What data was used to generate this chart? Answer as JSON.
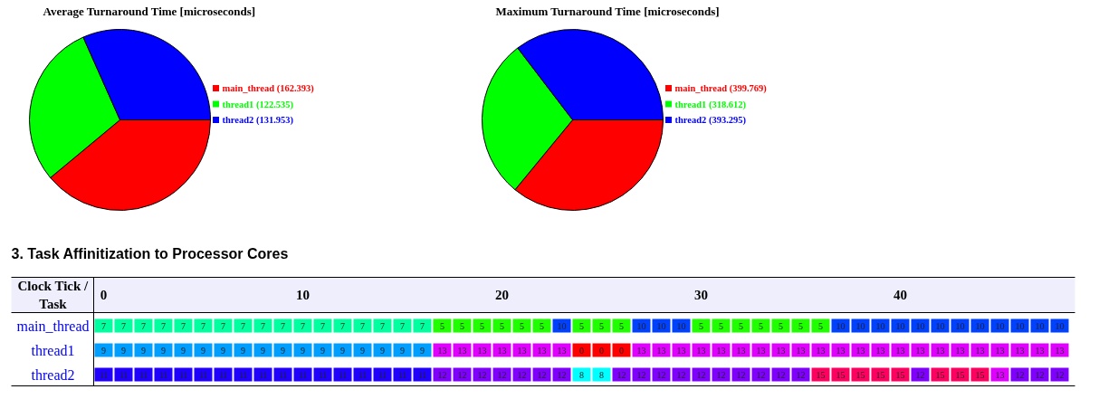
{
  "chart_data": [
    {
      "type": "pie",
      "title": "Average Turnaround Time [microseconds]",
      "categories": [
        "main_thread",
        "thread1",
        "thread2"
      ],
      "values": [
        162.393,
        122.535,
        131.953
      ],
      "value_labels": [
        "(162.393)",
        "(122.535)",
        "(131.953)"
      ],
      "colors": [
        "#ff0000",
        "#00ff00",
        "#0000ff"
      ],
      "legend": "right"
    },
    {
      "type": "pie",
      "title": "Maximum Turnaround Time [microseconds]",
      "categories": [
        "main_thread",
        "thread1",
        "thread2"
      ],
      "values": [
        399.769,
        318.612,
        393.295
      ],
      "value_labels": [
        "(399.769)",
        "(318.612)",
        "(393.295)"
      ],
      "colors": [
        "#ff0000",
        "#00ff00",
        "#0000ff"
      ],
      "legend": "right"
    },
    {
      "type": "heatmap",
      "title": "3. Task Affinitization to Processor Cores",
      "xlabel": "Clock Tick / Task",
      "data_labels": true,
      "categories": [
        "0",
        null,
        null,
        null,
        null,
        null,
        null,
        null,
        null,
        null,
        "10",
        null,
        null,
        null,
        null,
        null,
        null,
        null,
        null,
        null,
        "20",
        null,
        null,
        null,
        null,
        null,
        null,
        null,
        null,
        null,
        "30",
        null,
        null,
        null,
        null,
        null,
        null,
        null,
        null,
        null,
        "40",
        null,
        null,
        null,
        null,
        null,
        null,
        null,
        null
      ],
      "y_categories": [
        "main_thread",
        "thread1",
        "thread2"
      ],
      "cells": [
        [
          7,
          7,
          7,
          7,
          7,
          7,
          7,
          7,
          7,
          7,
          7,
          7,
          7,
          7,
          7,
          7,
          7,
          5,
          5,
          5,
          5,
          5,
          5,
          10,
          5,
          5,
          5,
          10,
          10,
          10,
          5,
          5,
          5,
          5,
          5,
          5,
          5,
          10,
          10,
          10,
          10,
          10,
          10,
          10,
          10,
          10,
          10,
          10,
          10
        ],
        [
          9,
          9,
          9,
          9,
          9,
          9,
          9,
          9,
          9,
          9,
          9,
          9,
          9,
          9,
          9,
          9,
          9,
          13,
          13,
          13,
          13,
          13,
          13,
          13,
          0,
          0,
          0,
          13,
          13,
          13,
          13,
          13,
          13,
          13,
          13,
          13,
          13,
          13,
          13,
          13,
          13,
          13,
          13,
          13,
          13,
          13,
          13,
          13,
          13
        ],
        [
          11,
          11,
          11,
          11,
          11,
          11,
          11,
          11,
          11,
          11,
          11,
          11,
          11,
          11,
          11,
          11,
          11,
          12,
          12,
          12,
          12,
          12,
          12,
          12,
          8,
          8,
          12,
          12,
          12,
          12,
          12,
          12,
          12,
          12,
          12,
          12,
          15,
          15,
          15,
          15,
          15,
          12,
          15,
          15,
          15,
          13,
          12,
          12,
          12
        ]
      ],
      "colors": [
        [
          "#00ff9f",
          "#00ff9f",
          "#00ff9f",
          "#00ff9f",
          "#00ff9f",
          "#00ff9f",
          "#00ff9f",
          "#00ff9f",
          "#00ff9f",
          "#00ff9f",
          "#00ff9f",
          "#00ff9f",
          "#00ff9f",
          "#00ff9f",
          "#00ff9f",
          "#00ff9f",
          "#00ff9f",
          "#20ff00",
          "#20ff00",
          "#20ff00",
          "#20ff00",
          "#20ff00",
          "#20ff00",
          "#0040ff",
          "#20ff00",
          "#20ff00",
          "#20ff00",
          "#0040ff",
          "#0040ff",
          "#0040ff",
          "#20ff00",
          "#20ff00",
          "#20ff00",
          "#20ff00",
          "#20ff00",
          "#20ff00",
          "#20ff00",
          "#0040ff",
          "#0040ff",
          "#0040ff",
          "#0040ff",
          "#0040ff",
          "#0040ff",
          "#0040ff",
          "#0040ff",
          "#0040ff",
          "#0040ff",
          "#0040ff",
          "#0040ff"
        ],
        [
          "#009fff",
          "#009fff",
          "#009fff",
          "#009fff",
          "#009fff",
          "#009fff",
          "#009fff",
          "#009fff",
          "#009fff",
          "#009fff",
          "#009fff",
          "#009fff",
          "#009fff",
          "#009fff",
          "#009fff",
          "#009fff",
          "#009fff",
          "#df00ff",
          "#df00ff",
          "#df00ff",
          "#df00ff",
          "#df00ff",
          "#df00ff",
          "#df00ff",
          "#ff0000",
          "#ff0000",
          "#ff0000",
          "#df00ff",
          "#df00ff",
          "#df00ff",
          "#df00ff",
          "#df00ff",
          "#df00ff",
          "#df00ff",
          "#df00ff",
          "#df00ff",
          "#df00ff",
          "#df00ff",
          "#df00ff",
          "#df00ff",
          "#df00ff",
          "#df00ff",
          "#df00ff",
          "#df00ff",
          "#df00ff",
          "#df00ff",
          "#df00ff",
          "#df00ff",
          "#df00ff"
        ],
        [
          "#2000ff",
          "#2000ff",
          "#2000ff",
          "#2000ff",
          "#2000ff",
          "#2000ff",
          "#2000ff",
          "#2000ff",
          "#2000ff",
          "#2000ff",
          "#2000ff",
          "#2000ff",
          "#2000ff",
          "#2000ff",
          "#2000ff",
          "#2000ff",
          "#2000ff",
          "#8000ff",
          "#8000ff",
          "#8000ff",
          "#8000ff",
          "#8000ff",
          "#8000ff",
          "#8000ff",
          "#00ffff",
          "#00ffff",
          "#8000ff",
          "#8000ff",
          "#8000ff",
          "#8000ff",
          "#8000ff",
          "#8000ff",
          "#8000ff",
          "#8000ff",
          "#8000ff",
          "#8000ff",
          "#ff0060",
          "#ff0060",
          "#ff0060",
          "#ff0060",
          "#ff0060",
          "#8000ff",
          "#ff0060",
          "#ff0060",
          "#ff0060",
          "#df00ff",
          "#8000ff",
          "#8000ff",
          "#8000ff"
        ]
      ]
    }
  ]
}
